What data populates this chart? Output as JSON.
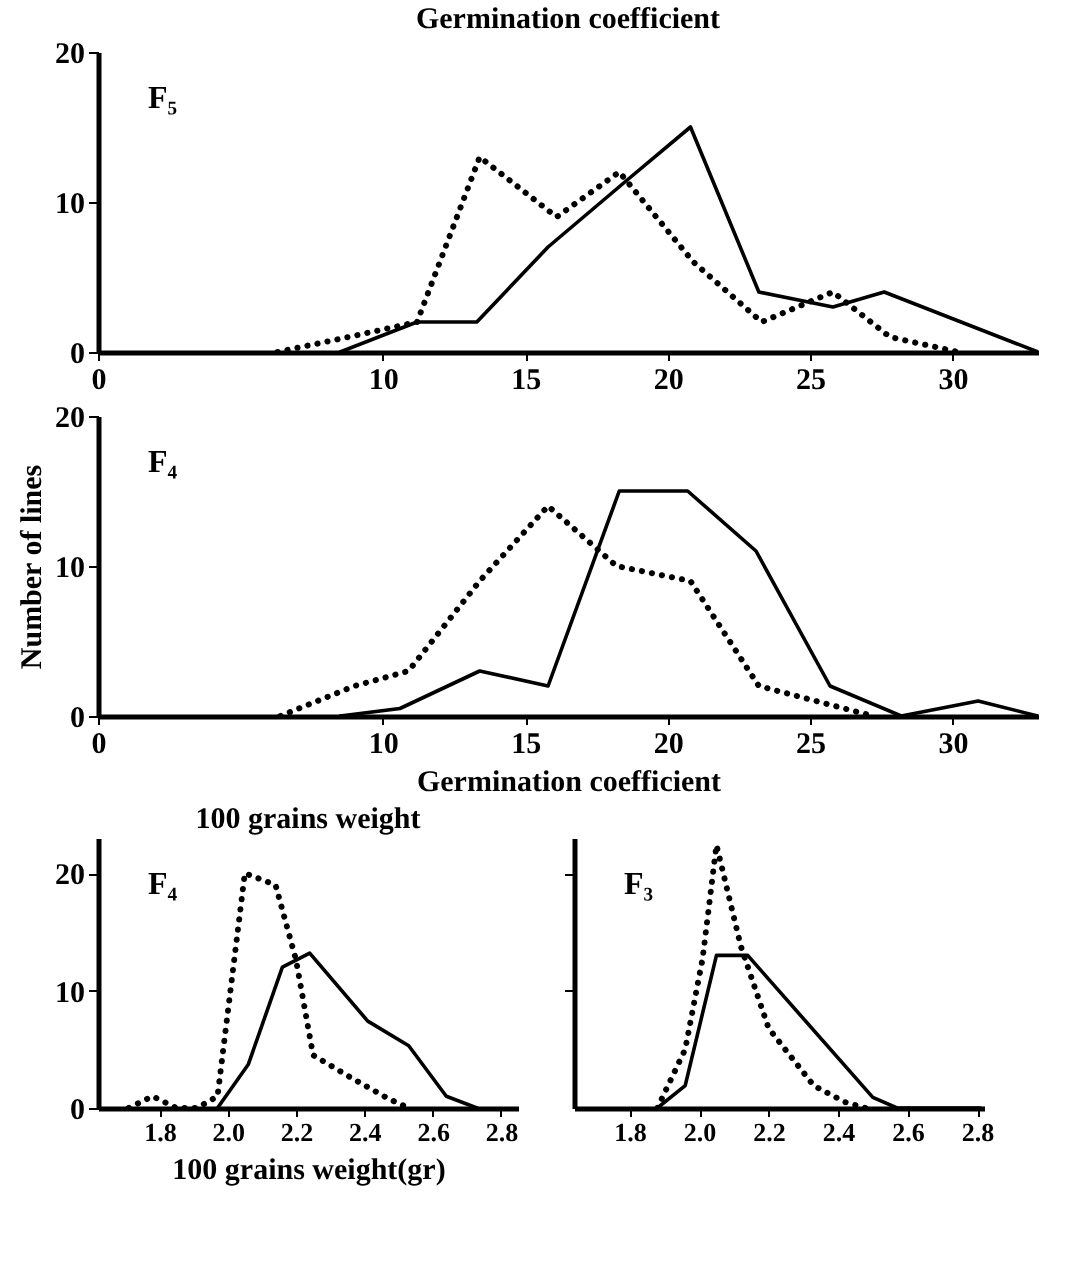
{
  "chart_data": [
    {
      "type": "line",
      "title": "Germination coefficient",
      "annotations": [
        "F₅"
      ],
      "xlim": [
        0,
        33
      ],
      "xticks": [
        0,
        10,
        15,
        20,
        25,
        30
      ],
      "ylim": [
        0,
        20
      ],
      "yticks": [
        0,
        10,
        20
      ],
      "grid": false,
      "marker": "none",
      "series": [
        {
          "color": "#000000",
          "line_style": "solid",
          "x": [
            8.5,
            11.2,
            13.3,
            15.8,
            18.6,
            20.8,
            23.2,
            25.8,
            27.6,
            33
          ],
          "values": [
            0,
            2,
            2,
            7,
            11.5,
            15,
            4,
            3,
            4,
            0
          ]
        },
        {
          "color": "#000000",
          "line_style": "dotted",
          "x": [
            6.3,
            8.8,
            11.2,
            13.4,
            16.1,
            18.3,
            20.9,
            23.3,
            25.8,
            27.8,
            30.2
          ],
          "values": [
            0,
            1,
            2,
            13,
            9,
            12,
            6,
            2,
            4,
            1,
            0
          ]
        }
      ]
    },
    {
      "type": "line",
      "xlabel": "Germination coefficient",
      "ylabel": "Number of lines",
      "annotations": [
        "F₄"
      ],
      "xlim": [
        0,
        33
      ],
      "xticks": [
        0,
        10,
        15,
        20,
        25,
        30
      ],
      "ylim": [
        0,
        20
      ],
      "yticks": [
        0,
        10,
        20
      ],
      "grid": false,
      "marker": "none",
      "series": [
        {
          "color": "#000000",
          "line_style": "solid",
          "x": [
            8.5,
            10.6,
            13.4,
            15.8,
            18.3,
            20.7,
            23.1,
            25.7,
            28.2,
            30.9,
            33
          ],
          "values": [
            0,
            0.5,
            3,
            2,
            15,
            15,
            11,
            2,
            0,
            1,
            0
          ]
        },
        {
          "color": "#000000",
          "line_style": "dotted",
          "x": [
            6.4,
            9,
            10.9,
            13.4,
            15.8,
            18.2,
            20.8,
            23.2,
            27.2
          ],
          "values": [
            0,
            2,
            3,
            9,
            14,
            10,
            9,
            2,
            0
          ]
        }
      ]
    },
    {
      "type": "line",
      "title": "100 grains weight",
      "xlabel": "100 grains weight(gr)",
      "annotations": [
        "F₄"
      ],
      "xlim": [
        1.62,
        2.85
      ],
      "xticks": [
        1.8,
        {
          "value": 2,
          "label": "2.0"
        },
        2.2,
        2.4,
        2.6,
        2.8
      ],
      "ylim": [
        0,
        23
      ],
      "yticks": [
        0,
        10,
        20
      ],
      "grid": false,
      "marker": "none",
      "series": [
        {
          "color": "#000000",
          "line_style": "solid",
          "x": [
            1.97,
            2.06,
            2.16,
            2.24,
            2.41,
            2.53,
            2.64,
            2.73
          ],
          "values": [
            0,
            3.7,
            12,
            13.2,
            7.4,
            5.3,
            1,
            0
          ]
        },
        {
          "color": "#000000",
          "line_style": "dotted",
          "x": [
            1.71,
            1.78,
            1.85,
            1.91,
            1.97,
            2.05,
            2.14,
            2.2,
            2.25,
            2.36,
            2.47,
            2.53
          ],
          "values": [
            0,
            1,
            0,
            0,
            1,
            20,
            19,
            12.6,
            4.5,
            2.6,
            0.8,
            0
          ]
        }
      ]
    },
    {
      "type": "line",
      "annotations": [
        "F₃"
      ],
      "xlim": [
        1.64,
        2.82
      ],
      "xticks": [
        1.8,
        {
          "value": 2,
          "label": "2.0"
        },
        2.2,
        2.4,
        2.6,
        2.8
      ],
      "ylim": [
        0,
        23
      ],
      "yticks": [
        10,
        20
      ],
      "tick_labels": "x",
      "grid": false,
      "marker": "none",
      "series": [
        {
          "color": "#000000",
          "line_style": "solid",
          "x": [
            1.88,
            1.96,
            2.05,
            2.14,
            2.5,
            2.57,
            2.81
          ],
          "values": [
            0,
            1.9,
            13,
            13,
            0.9,
            0,
            0
          ]
        },
        {
          "color": "#000000",
          "line_style": "dotted",
          "x": [
            1.88,
            1.96,
            2.01,
            2.05,
            2.12,
            2.2,
            2.33,
            2.42,
            2.48
          ],
          "values": [
            0,
            5,
            12.7,
            22.4,
            13.8,
            6.8,
            1.9,
            0.5,
            0
          ]
        }
      ]
    }
  ]
}
